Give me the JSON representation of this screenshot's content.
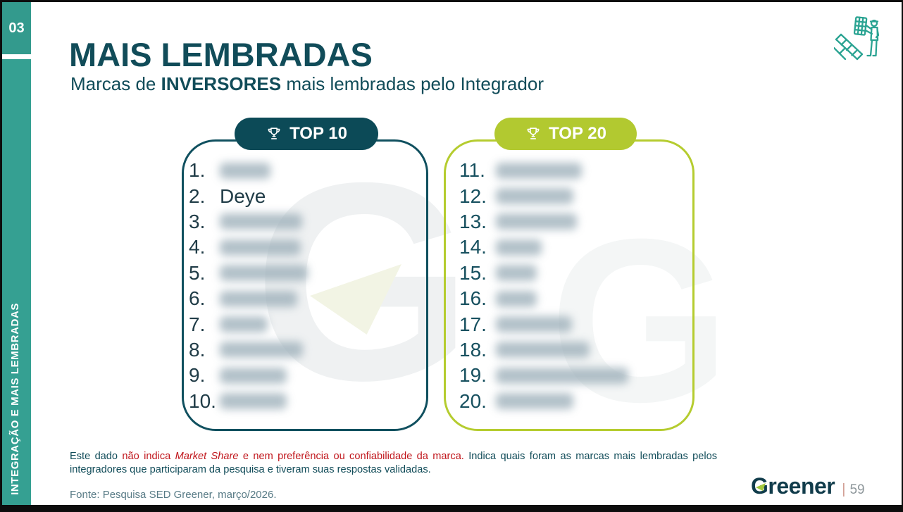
{
  "page": {
    "section_number": "03",
    "sidebar_label": "INTEGRAÇÃO E MAIS LEMBRADAS",
    "title": "MAIS LEMBRADAS",
    "subtitle_prefix": "Marcas de ",
    "subtitle_bold": "INVERSORES",
    "subtitle_suffix": " mais lembradas pelo Integrador",
    "watermark_letter": "G",
    "logo_text": "Greener",
    "page_number_divider": "|",
    "page_number": "59",
    "source": "Fonte: Pesquisa SED Greener, março/2026."
  },
  "disclaimer": {
    "line1": {
      "dark1": "Este dado ",
      "red1": "não indica ",
      "red_italic": "Market Share",
      "red2": " e nem preferência ou confiabilidade da marca.",
      "dark2": " Indica quais foram as marcas mais lembradas pelos"
    },
    "line2": "integradores que participaram da pesquisa e tiveram suas respostas validadas."
  },
  "top10": {
    "header": "TOP 10",
    "items": [
      {
        "rank": "1.",
        "label": "",
        "redacted": true,
        "blur_width": 72
      },
      {
        "rank": "2.",
        "label": "Deye",
        "redacted": false,
        "blur_width": 0
      },
      {
        "rank": "3.",
        "label": "",
        "redacted": true,
        "blur_width": 117
      },
      {
        "rank": "4.",
        "label": "",
        "redacted": true,
        "blur_width": 115
      },
      {
        "rank": "5.",
        "label": "",
        "redacted": true,
        "blur_width": 125
      },
      {
        "rank": "6.",
        "label": "",
        "redacted": true,
        "blur_width": 110
      },
      {
        "rank": "7.",
        "label": "",
        "redacted": true,
        "blur_width": 68
      },
      {
        "rank": "8.",
        "label": "",
        "redacted": true,
        "blur_width": 118
      },
      {
        "rank": "9.",
        "label": "",
        "redacted": true,
        "blur_width": 95
      },
      {
        "rank": "10.",
        "label": "",
        "redacted": true,
        "blur_width": 95
      }
    ]
  },
  "top20": {
    "header": "TOP 20",
    "items": [
      {
        "rank": "11.",
        "label": "",
        "redacted": true,
        "blur_width": 122
      },
      {
        "rank": "12.",
        "label": "",
        "redacted": true,
        "blur_width": 110
      },
      {
        "rank": "13.",
        "label": "",
        "redacted": true,
        "blur_width": 115
      },
      {
        "rank": "14.",
        "label": "",
        "redacted": true,
        "blur_width": 65
      },
      {
        "rank": "15.",
        "label": "",
        "redacted": true,
        "blur_width": 58
      },
      {
        "rank": "16.",
        "label": "",
        "redacted": true,
        "blur_width": 58
      },
      {
        "rank": "17.",
        "label": "",
        "redacted": true,
        "blur_width": 108
      },
      {
        "rank": "18.",
        "label": "",
        "redacted": true,
        "blur_width": 133
      },
      {
        "rank": "19.",
        "label": "",
        "redacted": true,
        "blur_width": 188
      },
      {
        "rank": "20.",
        "label": "",
        "redacted": true,
        "blur_width": 110
      }
    ]
  },
  "icons": {
    "trophy": "trophy-icon",
    "installer": "solar-installer-icon"
  },
  "colors": {
    "sidebar_teal": "#35a092",
    "dark_teal": "#114c59",
    "top10_pill": "#0c4a57",
    "top20_lime": "#b2c930",
    "disclaimer_red": "#c0151b",
    "logo_green": "#a3c83b",
    "blur_gray": "#9fb1bb"
  }
}
